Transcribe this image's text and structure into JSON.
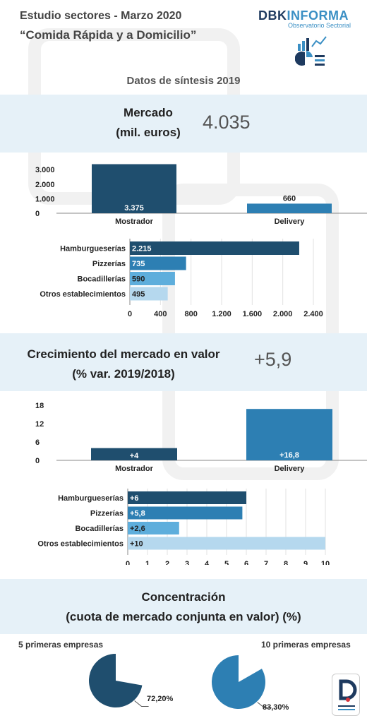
{
  "header": {
    "line1": "Estudio sectores - Marzo 2020",
    "line2": "“Comida Rápida y a Domicilio”"
  },
  "logo": {
    "brand_a": "DBK",
    "brand_b": "INFORMA",
    "subtitle": "Observatorio Sectorial",
    "icon": "chart-icon"
  },
  "synthesis_title": "Datos de síntesis 2019",
  "market": {
    "title_line1": "Mercado",
    "title_line2": "(mil. euros)",
    "total": "4.035"
  },
  "growth": {
    "title_line1": "Crecimiento del mercado en valor",
    "title_line2": "(% var. 2019/2018)",
    "total": "+5,9"
  },
  "concentration": {
    "title_line1": "Concentración",
    "title_line2": "(cuota de mercado conjunta en valor) (%)",
    "label_5": "5 primeras empresas",
    "label_10": "10 primeras empresas",
    "value_5_label": "72,20%",
    "value_10_label": "83,30%"
  },
  "colors": {
    "dark": "#1f4e6e",
    "mid": "#2d7fb3",
    "light": "#5eaedc",
    "pale": "#b5d8ee"
  },
  "chart_data": [
    {
      "type": "bar",
      "id": "market-channel",
      "categories": [
        "Mostrador",
        "Delivery"
      ],
      "values": [
        3375,
        660
      ],
      "value_labels": [
        "3.375",
        "660"
      ],
      "ticks": [
        0,
        1000,
        2000,
        3000
      ],
      "tick_labels": [
        "0",
        "1.000",
        "2.000",
        "3.000"
      ],
      "ylim": [
        0,
        3400
      ]
    },
    {
      "type": "bar",
      "orientation": "horizontal",
      "id": "market-segment",
      "categories": [
        "Hamburgueserías",
        "Pizzerías",
        "Bocadillerías",
        "Otros establecimientos"
      ],
      "values": [
        2215,
        735,
        590,
        495
      ],
      "value_labels": [
        "2.215",
        "735",
        "590",
        "495"
      ],
      "ticks": [
        0,
        400,
        800,
        1200,
        1600,
        2000,
        2400
      ],
      "tick_labels": [
        "0",
        "400",
        "800",
        "1.200",
        "1.600",
        "2.000",
        "2.400"
      ],
      "xlim": [
        0,
        2400
      ]
    },
    {
      "type": "bar",
      "id": "growth-channel",
      "categories": [
        "Mostrador",
        "Delivery"
      ],
      "values": [
        4,
        16.8
      ],
      "value_labels": [
        "+4",
        "+16,8"
      ],
      "ticks": [
        0,
        6,
        12,
        18
      ],
      "tick_labels": [
        "0",
        "6",
        "12",
        "18"
      ],
      "ylim": [
        0,
        18
      ]
    },
    {
      "type": "bar",
      "orientation": "horizontal",
      "id": "growth-segment",
      "categories": [
        "Hamburgueserías",
        "Pizzerías",
        "Bocadillerías",
        "Otros establecimientos"
      ],
      "values": [
        6,
        5.8,
        2.6,
        10
      ],
      "value_labels": [
        "+6",
        "+5,8",
        "+2,6",
        "+10"
      ],
      "ticks": [
        0,
        1,
        2,
        3,
        4,
        5,
        6,
        7,
        8,
        9,
        10
      ],
      "tick_labels": [
        "0",
        "1",
        "2",
        "3",
        "4",
        "5",
        "6",
        "7",
        "8",
        "9",
        "10"
      ],
      "xlim": [
        0,
        10
      ]
    },
    {
      "type": "pie",
      "id": "concentration-5",
      "values": [
        72.2,
        27.8
      ],
      "value_label": "72,20%"
    },
    {
      "type": "pie",
      "id": "concentration-10",
      "values": [
        83.3,
        16.7
      ],
      "value_label": "83,30%"
    }
  ]
}
